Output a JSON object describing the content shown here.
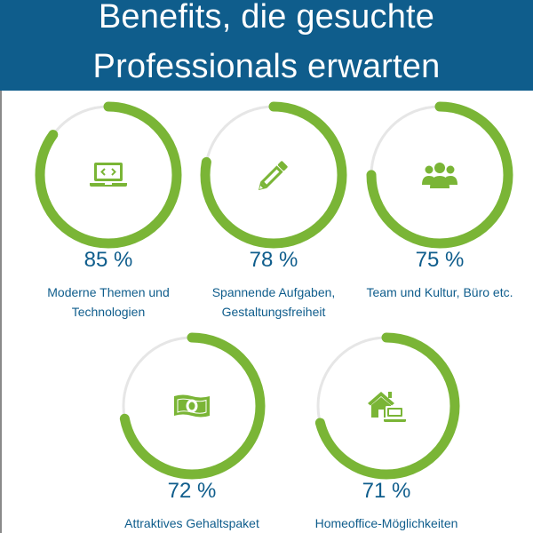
{
  "header": {
    "title_line1": "Benefits, die gesuchte",
    "title_line2": "Professionals erwarten",
    "background_color": "#0f5d8c"
  },
  "colors": {
    "ring_progress": "#7ab536",
    "ring_track": "#e6e6e6",
    "icon": "#7ab536",
    "text": "#0f5d8c"
  },
  "benefits": [
    {
      "percent_label": "85 %",
      "percent": 85,
      "label_line1": "Moderne Themen und",
      "label_line2": "Technologien",
      "icon": "laptop-code-icon"
    },
    {
      "percent_label": "78 %",
      "percent": 78,
      "label_line1": "Spannende Aufgaben,",
      "label_line2": "Gestaltungsfreiheit",
      "icon": "pencil-icon"
    },
    {
      "percent_label": "75 %",
      "percent": 75,
      "label_line1": "Team und Kultur, Büro etc.",
      "label_line2": "",
      "icon": "team-users-icon"
    },
    {
      "percent_label": "72 %",
      "percent": 72,
      "label_line1": "Attraktives Gehaltspaket",
      "label_line2": "",
      "icon": "money-bill-icon"
    },
    {
      "percent_label": "71 %",
      "percent": 71,
      "label_line1": "Homeoffice-Möglichkeiten",
      "label_line2": "",
      "icon": "home-office-icon"
    }
  ]
}
